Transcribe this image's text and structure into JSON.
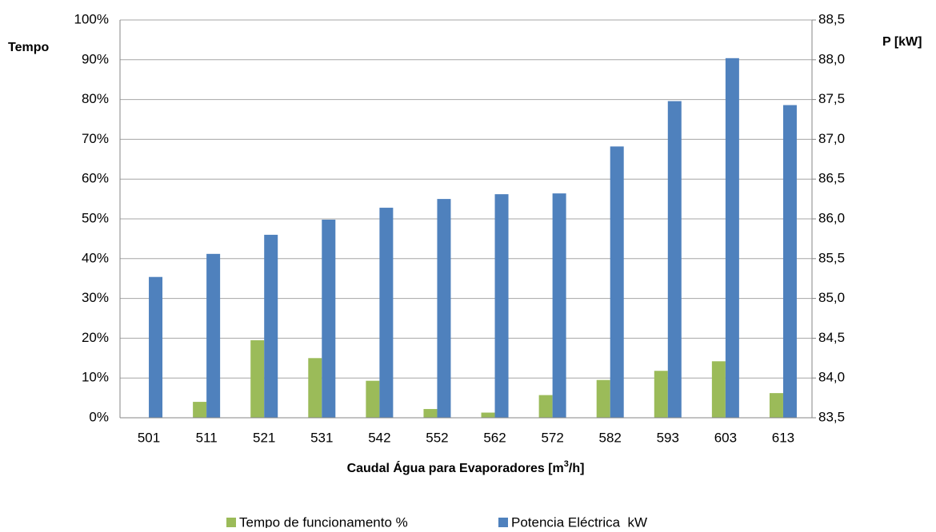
{
  "chart_data": {
    "type": "bar",
    "ylabel": "Tempo",
    "y2label": "P [kW]",
    "xlabel": {
      "text": "Caudal Água para Evaporadores [m",
      "sup": "3",
      "end": "/h]"
    },
    "categories": [
      "501",
      "511",
      "521",
      "531",
      "542",
      "552",
      "562",
      "572",
      "582",
      "593",
      "603",
      "613"
    ],
    "series": [
      {
        "name": "Tempo de funcionamento %",
        "color": "#9bbb59",
        "axis": "y",
        "values": [
          0,
          4,
          19.5,
          15,
          9.3,
          2.2,
          1.3,
          5.7,
          9.5,
          11.8,
          14.2,
          6.2
        ]
      },
      {
        "name": "Potencia Eléctrica  kW",
        "color": "#4f81bd",
        "axis": "y2",
        "values": [
          85.27,
          85.56,
          85.8,
          85.99,
          86.14,
          86.25,
          86.31,
          86.32,
          86.91,
          87.48,
          88.02,
          87.43
        ]
      }
    ],
    "ylim": [
      0,
      100
    ],
    "yticks": [
      {
        "value": 0,
        "label": "0%"
      },
      {
        "value": 10,
        "label": "10%"
      },
      {
        "value": 20,
        "label": "20%"
      },
      {
        "value": 30,
        "label": "30%"
      },
      {
        "value": 40,
        "label": "40%"
      },
      {
        "value": 50,
        "label": "50%"
      },
      {
        "value": 60,
        "label": "60%"
      },
      {
        "value": 70,
        "label": "70%"
      },
      {
        "value": 80,
        "label": "80%"
      },
      {
        "value": 90,
        "label": "90%"
      },
      {
        "value": 100,
        "label": "100%"
      }
    ],
    "y2lim": [
      83.5,
      88.5
    ],
    "y2ticks": [
      {
        "value": 83.5,
        "label": "83,5"
      },
      {
        "value": 84,
        "label": "84,0"
      },
      {
        "value": 84.5,
        "label": "84,5"
      },
      {
        "value": 85,
        "label": "85,0"
      },
      {
        "value": 85.5,
        "label": "85,5"
      },
      {
        "value": 86,
        "label": "86,0"
      },
      {
        "value": 86.5,
        "label": "86,5"
      },
      {
        "value": 87,
        "label": "87,0"
      },
      {
        "value": 87.5,
        "label": "87,5"
      },
      {
        "value": 88,
        "label": "88,0"
      },
      {
        "value": 88.5,
        "label": "88,5"
      }
    ],
    "grid": true,
    "legend": "bottom"
  }
}
